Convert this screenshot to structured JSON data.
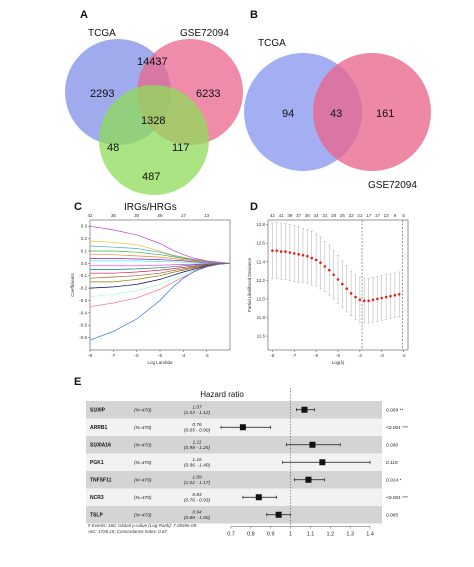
{
  "chart_data": [
    {
      "panel": "A",
      "type": "venn",
      "sets": [
        "TCGA",
        "GSE72094",
        "IRGs/HRGs"
      ],
      "regions": [
        {
          "sets": [
            "TCGA"
          ],
          "value": "2293"
        },
        {
          "sets": [
            "GSE72094"
          ],
          "value": "6233"
        },
        {
          "sets": [
            "TCGA",
            "GSE72094"
          ],
          "value": "14437"
        },
        {
          "sets": [
            "TCGA",
            "GSE72094",
            "IRGs/HRGs"
          ],
          "value": "1328"
        },
        {
          "sets": [
            "TCGA",
            "IRGs/HRGs"
          ],
          "value": "48"
        },
        {
          "sets": [
            "GSE72094",
            "IRGs/HRGs"
          ],
          "value": "117"
        },
        {
          "sets": [
            "IRGs/HRGs"
          ],
          "value": "487"
        }
      ],
      "colors": {
        "TCGA": "#7f8fe6",
        "GSE72094": "#e8668c",
        "IRGs/HRGs": "#8fdc5a"
      }
    },
    {
      "panel": "B",
      "type": "venn",
      "sets": [
        "TCGA",
        "GSE72094"
      ],
      "regions": [
        {
          "sets": [
            "TCGA"
          ],
          "value": "94"
        },
        {
          "sets": [
            "TCGA",
            "GSE72094"
          ],
          "value": "43"
        },
        {
          "sets": [
            "GSE72094"
          ],
          "value": "161"
        }
      ],
      "colors": {
        "TCGA": "#8a98ef",
        "GSE72094": "#e8668c"
      }
    },
    {
      "panel": "C",
      "type": "line",
      "xlabel": "Log Lambda",
      "ylabel": "Coefficients",
      "xlim": [
        -8,
        -2
      ],
      "ylim": [
        -0.7,
        0.35
      ],
      "x_ticks": [
        "-8",
        "-7",
        "-6",
        "-5",
        "-4",
        "-3"
      ],
      "x_tick_values": [
        -8,
        -7,
        -6,
        -5,
        -4,
        -3
      ],
      "y_ticks": [
        "-0.6",
        "-0.5",
        "-0.4",
        "-0.3",
        "-0.2",
        "-0.1",
        "0.0",
        "0.1",
        "0.2",
        "0.3"
      ],
      "y_tick_values": [
        -0.6,
        -0.5,
        -0.4,
        -0.3,
        -0.2,
        -0.1,
        0.0,
        0.1,
        0.2,
        0.3
      ],
      "top_ticks": [
        "42",
        "35",
        "30",
        "26",
        "17",
        "13"
      ],
      "top_tick_values": [
        -8,
        -7,
        -6,
        -5,
        -4,
        -3
      ],
      "x": [
        -8,
        -7,
        -6,
        -5,
        -4.5,
        -4,
        -3.5,
        -3,
        -2.5,
        -2
      ],
      "series": [
        {
          "values": [
            0.3,
            0.27,
            0.23,
            0.16,
            0.11,
            0.07,
            0.04,
            0.02,
            0.01,
            0.0
          ],
          "color": "#c53fd9"
        },
        {
          "values": [
            0.18,
            0.17,
            0.15,
            0.1,
            0.07,
            0.05,
            0.03,
            0.015,
            0.005,
            0.0
          ],
          "color": "#e6c13a"
        },
        {
          "values": [
            0.14,
            0.13,
            0.12,
            0.09,
            0.065,
            0.045,
            0.03,
            0.015,
            0.005,
            0.0
          ],
          "color": "#4aa3df"
        },
        {
          "values": [
            0.1,
            0.1,
            0.09,
            0.07,
            0.055,
            0.04,
            0.025,
            0.012,
            0.004,
            0.0
          ],
          "color": "#3cb44b"
        },
        {
          "values": [
            0.07,
            0.07,
            0.06,
            0.05,
            0.04,
            0.03,
            0.02,
            0.01,
            0.004,
            0.0
          ],
          "color": "#f58231"
        },
        {
          "values": [
            0.04,
            0.04,
            0.035,
            0.03,
            0.025,
            0.02,
            0.012,
            0.006,
            0.002,
            0.0
          ],
          "color": "#911eb4"
        },
        {
          "values": [
            0.02,
            0.02,
            0.02,
            0.015,
            0.012,
            0.009,
            0.006,
            0.003,
            0.001,
            0.0
          ],
          "color": "#46f0f0"
        },
        {
          "values": [
            -0.02,
            -0.02,
            -0.02,
            -0.015,
            -0.012,
            -0.009,
            -0.006,
            -0.003,
            -0.001,
            0.0
          ],
          "color": "#f032e6"
        },
        {
          "values": [
            -0.05,
            -0.05,
            -0.045,
            -0.035,
            -0.028,
            -0.02,
            -0.013,
            -0.007,
            -0.002,
            0.0
          ],
          "color": "#008080"
        },
        {
          "values": [
            -0.08,
            -0.08,
            -0.07,
            -0.055,
            -0.045,
            -0.033,
            -0.022,
            -0.011,
            -0.004,
            0.0
          ],
          "color": "#e6194b"
        },
        {
          "values": [
            -0.12,
            -0.11,
            -0.1,
            -0.08,
            -0.06,
            -0.045,
            -0.03,
            -0.015,
            -0.005,
            0.0
          ],
          "color": "#9a6324"
        },
        {
          "values": [
            -0.15,
            -0.15,
            -0.13,
            -0.1,
            -0.075,
            -0.055,
            -0.035,
            -0.018,
            -0.006,
            0.0
          ],
          "color": "#808000"
        },
        {
          "values": [
            -0.2,
            -0.19,
            -0.17,
            -0.13,
            -0.1,
            -0.07,
            -0.045,
            -0.022,
            -0.007,
            0.0
          ],
          "color": "#000075"
        },
        {
          "values": [
            -0.27,
            -0.25,
            -0.22,
            -0.17,
            -0.13,
            -0.09,
            -0.055,
            -0.027,
            -0.008,
            0.0
          ],
          "color": "#aaffc3"
        },
        {
          "values": [
            -0.35,
            -0.32,
            -0.28,
            -0.21,
            -0.16,
            -0.11,
            -0.065,
            -0.03,
            -0.009,
            0.0
          ],
          "color": "#ff6f91"
        },
        {
          "values": [
            -0.62,
            -0.55,
            -0.45,
            -0.3,
            -0.2,
            -0.12,
            -0.06,
            -0.025,
            -0.008,
            0.0
          ],
          "color": "#2f6fd6"
        }
      ]
    },
    {
      "panel": "D",
      "type": "scatter",
      "xlabel": "Log(λ)",
      "ylabel": "Partial Likelihood Deviance",
      "xlim": [
        -8.2,
        -1.8
      ],
      "ylim": [
        11.45,
        12.85
      ],
      "x_ticks": [
        "-8",
        "-7",
        "-6",
        "-5",
        "-4",
        "-3",
        "-2"
      ],
      "x_tick_values": [
        -8,
        -7,
        -6,
        -5,
        -4,
        -3,
        -2
      ],
      "y_ticks": [
        "11.6",
        "11.8",
        "12.0",
        "12.2",
        "12.4",
        "12.6",
        "12.8"
      ],
      "y_tick_values": [
        11.6,
        11.8,
        12.0,
        12.2,
        12.4,
        12.6,
        12.8
      ],
      "top_ticks": [
        "42",
        "41",
        "39",
        "37",
        "36",
        "34",
        "31",
        "28",
        "25",
        "22",
        "21",
        "17",
        "17",
        "13",
        "9",
        "5"
      ],
      "top_tick_values": [
        -8,
        -7.6,
        -7.2,
        -6.8,
        -6.4,
        -6.0,
        -5.6,
        -5.2,
        -4.8,
        -4.4,
        -4.0,
        -3.6,
        -3.2,
        -2.8,
        -2.4,
        -2.0
      ],
      "vlines": [
        -3.9,
        -2.05
      ],
      "x": [
        -8.0,
        -7.8,
        -7.6,
        -7.4,
        -7.2,
        -7.0,
        -6.8,
        -6.6,
        -6.4,
        -6.2,
        -6.0,
        -5.8,
        -5.6,
        -5.4,
        -5.2,
        -5.0,
        -4.8,
        -4.6,
        -4.4,
        -4.2,
        -4.0,
        -3.8,
        -3.6,
        -3.4,
        -3.2,
        -3.0,
        -2.8,
        -2.6,
        -2.4,
        -2.2
      ],
      "values": [
        12.52,
        12.52,
        12.51,
        12.51,
        12.5,
        12.49,
        12.48,
        12.47,
        12.46,
        12.44,
        12.42,
        12.39,
        12.35,
        12.31,
        12.26,
        12.21,
        12.16,
        12.11,
        12.06,
        12.02,
        11.99,
        11.98,
        11.98,
        11.99,
        12.0,
        12.01,
        12.02,
        12.03,
        12.04,
        12.05
      ],
      "err": [
        0.3,
        0.3,
        0.3,
        0.3,
        0.3,
        0.3,
        0.3,
        0.29,
        0.29,
        0.29,
        0.28,
        0.28,
        0.27,
        0.27,
        0.26,
        0.26,
        0.25,
        0.25,
        0.24,
        0.24,
        0.24,
        0.24,
        0.24,
        0.24,
        0.24,
        0.24,
        0.24,
        0.24,
        0.24,
        0.24
      ],
      "point_color": "#e2231a"
    },
    {
      "panel": "E",
      "type": "forest",
      "title": "Hazard ratio",
      "rows": [
        {
          "gene": "S100P",
          "n": "(N=470)",
          "hr": "1.07",
          "ci": "(1.03 - 1.12)",
          "p": "0.009 **",
          "hr_value": 1.07,
          "ci_low": 1.03,
          "ci_high": 1.12
        },
        {
          "gene": "ARRB1",
          "n": "(N=470)",
          "hr": "0.76",
          "ci": "(0.65 - 0.90)",
          "p": "<0.001 ***",
          "hr_value": 0.76,
          "ci_low": 0.65,
          "ci_high": 0.9
        },
        {
          "gene": "S100A16",
          "n": "(N=470)",
          "hr": "1.11",
          "ci": "(0.98 - 1.25)",
          "p": "0.090",
          "hr_value": 1.11,
          "ci_low": 0.98,
          "ci_high": 1.25
        },
        {
          "gene": "PGK1",
          "n": "(N=470)",
          "hr": "1.16",
          "ci": "(0.96 - 1.40)",
          "p": "0.118",
          "hr_value": 1.16,
          "ci_low": 0.96,
          "ci_high": 1.4
        },
        {
          "gene": "TNFSF11",
          "n": "(N=470)",
          "hr": "1.09",
          "ci": "(1.02 - 1.17)",
          "p": "0.014 *",
          "hr_value": 1.09,
          "ci_low": 1.02,
          "ci_high": 1.17
        },
        {
          "gene": "NCR3",
          "n": "(N=470)",
          "hr": "0.84",
          "ci": "(0.76 - 0.93)",
          "p": "<0.001 ***",
          "hr_value": 0.84,
          "ci_low": 0.76,
          "ci_high": 0.93
        },
        {
          "gene": "TSLP",
          "n": "(N=470)",
          "hr": "0.94",
          "ci": "(0.88 - 1.00)",
          "p": "0.085",
          "hr_value": 0.94,
          "ci_low": 0.88,
          "ci_high": 1.0
        }
      ],
      "x_ticks": [
        "0.7",
        "0.8",
        "0.9",
        "1",
        "1.1",
        "1.2",
        "1.3",
        "1.4"
      ],
      "x_tick_values": [
        0.7,
        0.8,
        0.9,
        1.0,
        1.1,
        1.2,
        1.3,
        1.4
      ],
      "xlim": [
        0.67,
        1.45
      ],
      "footnote_1": "# Events: 160; Global p-value (Log-Rank): 7.0559e-09",
      "footnote_2": "AIC: 1726.15; Concordance Index: 0.67"
    }
  ],
  "panel_labels": [
    "A",
    "B",
    "C",
    "D",
    "E"
  ]
}
